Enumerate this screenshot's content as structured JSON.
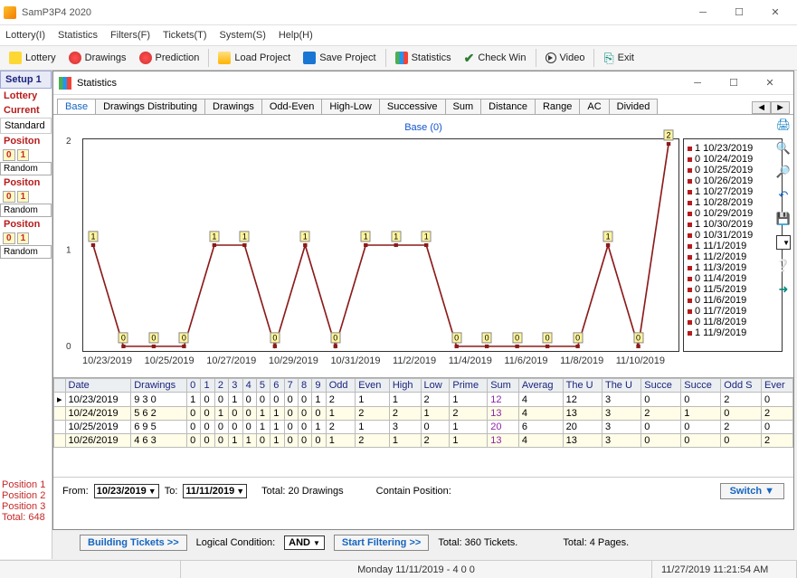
{
  "window": {
    "title": "SamP3P4 2020"
  },
  "menu": [
    "Lottery(I)",
    "Statistics",
    "Filters(F)",
    "Tickets(T)",
    "System(S)",
    "Help(H)"
  ],
  "toolbar": [
    {
      "label": "Lottery",
      "icon": "ico-yellow"
    },
    {
      "label": "Drawings",
      "icon": "ico-red"
    },
    {
      "label": "Prediction",
      "icon": "ico-red"
    },
    {
      "sep": true
    },
    {
      "label": "Load Project",
      "icon": "ico-folder"
    },
    {
      "label": "Save Project",
      "icon": "ico-disk"
    },
    {
      "sep": true
    },
    {
      "label": "Statistics",
      "icon": "ico-chart"
    },
    {
      "label": "Check Win",
      "icon": "check"
    },
    {
      "sep": true
    },
    {
      "label": "Video",
      "icon": "play"
    },
    {
      "sep": true
    },
    {
      "label": "Exit",
      "icon": "exit"
    }
  ],
  "left": {
    "setup": "Setup 1",
    "lottery": "Lottery",
    "current": "Current",
    "standard": "Standard",
    "positon": "Positon",
    "random": "Random",
    "summary": [
      "Position 1",
      "Position 2",
      "Position 3",
      "Total: 648"
    ]
  },
  "stats": {
    "title": "Statistics",
    "tabs": [
      "Base",
      "Drawings Distributing",
      "Drawings",
      "Odd-Even",
      "High-Low",
      "Successive",
      "Sum",
      "Distance",
      "Range",
      "AC",
      "Divided"
    ],
    "active_tab": 0,
    "chart": {
      "title": "Base (0)",
      "ylim": [
        0,
        2
      ],
      "xcount": 20,
      "values": [
        1,
        0,
        0,
        0,
        1,
        1,
        0,
        1,
        0,
        1,
        1,
        1,
        0,
        0,
        0,
        0,
        0,
        1,
        0,
        2
      ],
      "series_color": "#8b1a1a",
      "label_bg": "#fff59d",
      "xlabels": [
        "10/23/2019",
        "10/25/2019",
        "10/27/2019",
        "10/29/2019",
        "10/31/2019",
        "11/2/2019",
        "11/4/2019",
        "11/6/2019",
        "11/8/2019",
        "11/10/2019"
      ],
      "legend": [
        "1 10/23/2019",
        "0 10/24/2019",
        "0 10/25/2019",
        "0 10/26/2019",
        "1 10/27/2019",
        "1 10/28/2019",
        "0 10/29/2019",
        "1 10/30/2019",
        "0 10/31/2019",
        "1 11/1/2019",
        "1 11/2/2019",
        "1 11/3/2019",
        "0 11/4/2019",
        "0 11/5/2019",
        "0 11/6/2019",
        "0 11/7/2019",
        "0 11/8/2019",
        "1 11/9/2019"
      ]
    },
    "table": {
      "columns": [
        "Date",
        "Drawings",
        "0",
        "1",
        "2",
        "3",
        "4",
        "5",
        "6",
        "7",
        "8",
        "9",
        "Odd",
        "Even",
        "High",
        "Low",
        "Prime",
        "Sum",
        "Averag",
        "The U",
        "The U",
        "Succe",
        "Succe",
        "Odd S",
        "Ever"
      ],
      "rows": [
        [
          "10/23/2019",
          "9 3 0",
          "1",
          "0",
          "0",
          "1",
          "0",
          "0",
          "0",
          "0",
          "0",
          "1",
          "2",
          "1",
          "1",
          "2",
          "1",
          "12",
          "4",
          "12",
          "3",
          "0",
          "0",
          "2",
          "0"
        ],
        [
          "10/24/2019",
          "5 6 2",
          "0",
          "0",
          "1",
          "0",
          "0",
          "1",
          "1",
          "0",
          "0",
          "0",
          "1",
          "2",
          "2",
          "1",
          "2",
          "13",
          "4",
          "13",
          "3",
          "2",
          "1",
          "0",
          "2"
        ],
        [
          "10/25/2019",
          "6 9 5",
          "0",
          "0",
          "0",
          "0",
          "0",
          "1",
          "1",
          "0",
          "0",
          "1",
          "2",
          "1",
          "3",
          "0",
          "1",
          "20",
          "6",
          "20",
          "3",
          "0",
          "0",
          "2",
          "0"
        ],
        [
          "10/26/2019",
          "4 6 3",
          "0",
          "0",
          "0",
          "1",
          "1",
          "0",
          "1",
          "0",
          "0",
          "0",
          "1",
          "2",
          "1",
          "2",
          "1",
          "13",
          "4",
          "13",
          "3",
          "0",
          "0",
          "0",
          "2"
        ]
      ]
    },
    "datebar": {
      "from_lbl": "From:",
      "from": "10/23/2019",
      "to_lbl": "To:",
      "to": "11/11/2019",
      "total": "Total: 20 Drawings",
      "contain": "Contain Position:",
      "switch": "Switch"
    }
  },
  "bottom": {
    "build": "Building  Tickets >>",
    "logic_lbl": "Logical Condition:",
    "logic_val": "AND",
    "start": "Start Filtering  >>",
    "tix": "Total: 360 Tickets.",
    "pages": "Total: 4 Pages."
  },
  "status": {
    "center": "Monday 11/11/2019 - 4 0 0",
    "right": "11/27/2019 11:21:54 AM"
  }
}
